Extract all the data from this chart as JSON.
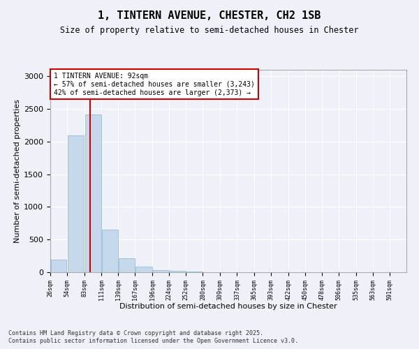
{
  "title": "1, TINTERN AVENUE, CHESTER, CH2 1SB",
  "subtitle": "Size of property relative to semi-detached houses in Chester",
  "xlabel": "Distribution of semi-detached houses by size in Chester",
  "ylabel": "Number of semi-detached properties",
  "property_size": 92,
  "property_label": "1 TINTERN AVENUE: 92sqm",
  "pct_smaller": 57,
  "pct_larger": 42,
  "count_smaller": 3243,
  "count_larger": 2373,
  "footnote1": "Contains HM Land Registry data © Crown copyright and database right 2025.",
  "footnote2": "Contains public sector information licensed under the Open Government Licence v3.0.",
  "bar_color": "#c6d9ec",
  "bar_edge_color": "#8eb4d4",
  "vline_color": "#cc0000",
  "annotation_box_color": "#cc0000",
  "background_color": "#eef2f8",
  "grid_color": "#ffffff",
  "categories": [
    "26sqm",
    "54sqm",
    "83sqm",
    "111sqm",
    "139sqm",
    "167sqm",
    "196sqm",
    "224sqm",
    "252sqm",
    "280sqm",
    "309sqm",
    "337sqm",
    "365sqm",
    "393sqm",
    "422sqm",
    "450sqm",
    "478sqm",
    "506sqm",
    "535sqm",
    "563sqm",
    "591sqm"
  ],
  "bin_edges": [
    26,
    54,
    83,
    111,
    139,
    167,
    196,
    224,
    252,
    280,
    309,
    337,
    365,
    393,
    422,
    450,
    478,
    506,
    535,
    563,
    591,
    619
  ],
  "values": [
    190,
    2090,
    2420,
    650,
    215,
    85,
    35,
    20,
    15,
    0,
    0,
    0,
    0,
    0,
    0,
    0,
    0,
    0,
    0,
    0,
    0
  ],
  "ylim": [
    0,
    3100
  ],
  "yticks": [
    0,
    500,
    1000,
    1500,
    2000,
    2500,
    3000
  ]
}
